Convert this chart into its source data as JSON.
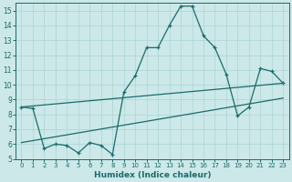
{
  "xlabel": "Humidex (Indice chaleur)",
  "bg_color": "#cce8e8",
  "line_color": "#1a6b6b",
  "grid_color": "#aad4d4",
  "xlim": [
    -0.5,
    23.5
  ],
  "ylim": [
    5,
    15.5
  ],
  "xticks": [
    0,
    1,
    2,
    3,
    4,
    5,
    6,
    7,
    8,
    9,
    10,
    11,
    12,
    13,
    14,
    15,
    16,
    17,
    18,
    19,
    20,
    21,
    22,
    23
  ],
  "yticks": [
    5,
    6,
    7,
    8,
    9,
    10,
    11,
    12,
    13,
    14,
    15
  ],
  "line1_x": [
    0,
    1,
    2,
    3,
    4,
    5,
    6,
    7,
    8,
    9,
    10,
    11,
    12,
    13,
    14,
    15,
    16,
    17,
    18,
    19,
    20,
    21,
    22,
    23
  ],
  "line1_y": [
    8.5,
    8.4,
    5.7,
    6.0,
    5.9,
    5.4,
    6.1,
    5.9,
    5.3,
    9.5,
    10.6,
    12.5,
    12.5,
    14.0,
    15.3,
    15.3,
    13.3,
    12.5,
    10.7,
    7.9,
    8.5,
    11.1,
    10.9,
    10.1
  ],
  "line2_x": [
    0,
    23
  ],
  "line2_y": [
    6.1,
    9.1
  ],
  "line3_x": [
    0,
    23
  ],
  "line3_y": [
    8.5,
    10.1
  ]
}
